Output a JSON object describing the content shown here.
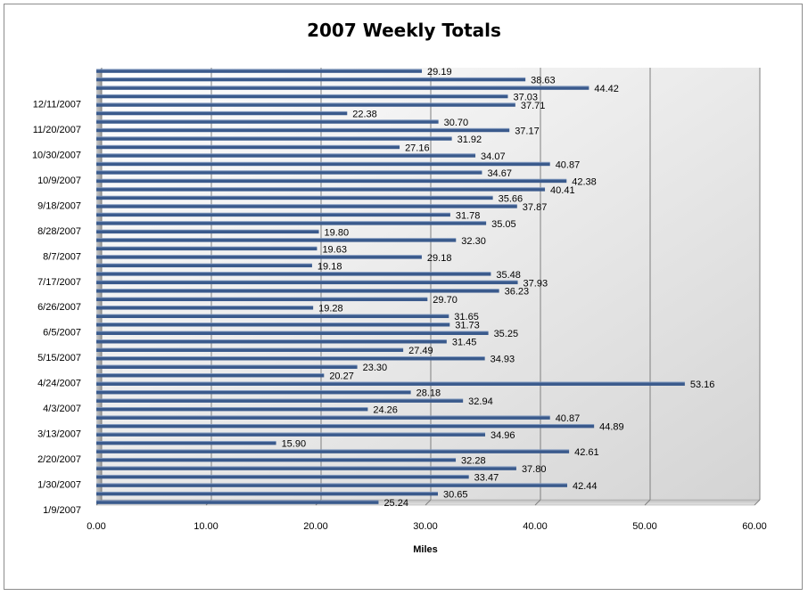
{
  "chart_data": {
    "type": "bar",
    "orientation": "horizontal",
    "title": "2007 Weekly Totals",
    "xlabel": "Miles",
    "ylabel": "",
    "xlim": [
      0,
      60
    ],
    "x_ticks": [
      "0.00",
      "10.00",
      "20.00",
      "30.00",
      "40.00",
      "50.00",
      "60.00"
    ],
    "y_tick_labels": [
      "1/9/2007",
      "1/30/2007",
      "2/20/2007",
      "3/13/2007",
      "4/3/2007",
      "4/24/2007",
      "5/15/2007",
      "6/5/2007",
      "6/26/2007",
      "7/17/2007",
      "8/7/2007",
      "8/28/2007",
      "9/18/2007",
      "10/9/2007",
      "10/30/2007",
      "11/20/2007",
      "12/11/2007"
    ],
    "grid": true,
    "legend": "none",
    "bar_color": "#3a5a8c",
    "series": [
      {
        "values": [
          25.24,
          30.65,
          42.44,
          33.47,
          37.8,
          32.28,
          42.61,
          15.9,
          34.96,
          44.89,
          40.87,
          24.26,
          32.94,
          28.18,
          53.16,
          20.27,
          23.3,
          34.93,
          27.49,
          31.45,
          35.25,
          31.73,
          31.65,
          19.28,
          29.7,
          36.23,
          37.93,
          35.48,
          19.18,
          29.18,
          19.63,
          32.3,
          19.8,
          35.05,
          31.78,
          37.87,
          35.66,
          40.41,
          42.38,
          34.67,
          40.87,
          34.07,
          27.16,
          31.92,
          37.17,
          30.7,
          22.38,
          37.71,
          37.03,
          44.42,
          38.63,
          29.19
        ],
        "labels": [
          "25.24",
          "30.65",
          "42.44",
          "33.47",
          "37.80",
          "32.28",
          "42.61",
          "15.90",
          "34.96",
          "44.89",
          "40.87",
          "24.26",
          "32.94",
          "28.18",
          "53.16",
          "20.27",
          "23.30",
          "34.93",
          "27.49",
          "31.45",
          "35.25",
          "31.73",
          "31.65",
          "19.28",
          "29.70",
          "36.23",
          "37.93",
          "35.48",
          "19.18",
          "29.18",
          "19.63",
          "32.30",
          "19.80",
          "35.05",
          "31.78",
          "37.87",
          "35.66",
          "40.41",
          "42.38",
          "34.67",
          "40.87",
          "34.07",
          "27.16",
          "31.92",
          "37.17",
          "30.70",
          "22.38",
          "37.71",
          "37.03",
          "44.42",
          "38.63",
          "29.19"
        ]
      }
    ]
  }
}
